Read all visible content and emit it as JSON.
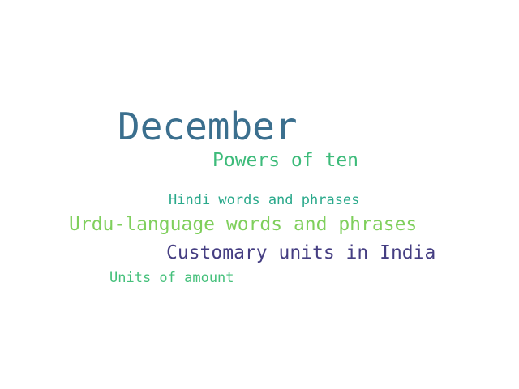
{
  "word_cloud": {
    "words": [
      {
        "text": "December",
        "color": "#3b6f8e"
      },
      {
        "text": "Powers of ten",
        "color": "#3dbb7a"
      },
      {
        "text": "Hindi words and phrases",
        "color": "#2aa98b"
      },
      {
        "text": "Urdu-language words and phrases",
        "color": "#7fcf5c"
      },
      {
        "text": "Customary units in India",
        "color": "#453e82"
      },
      {
        "text": "Units of amount",
        "color": "#45c07b"
      }
    ]
  }
}
